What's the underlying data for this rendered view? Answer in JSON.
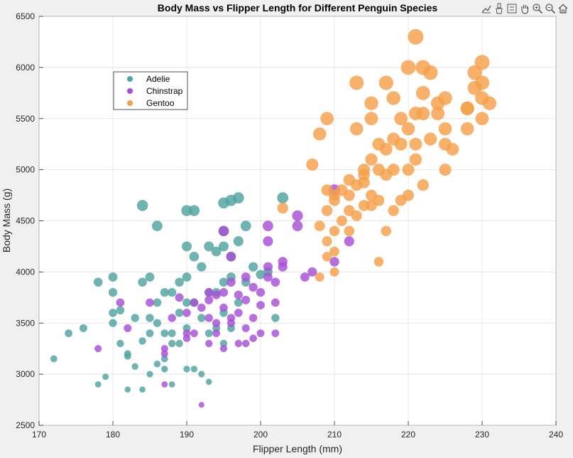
{
  "toolbar": {
    "icons": [
      "data-tips-icon",
      "brush-icon",
      "restore-view-icon",
      "pan-icon",
      "zoom-in-icon",
      "zoom-out-icon",
      "home-icon"
    ]
  },
  "chart_data": {
    "type": "scatter",
    "title": "Body Mass vs Flipper Length for Different Penguin Species",
    "xlabel": "Flipper Length (mm)",
    "ylabel": "Body Mass (g)",
    "xlim": [
      170,
      240
    ],
    "ylim": [
      2500,
      6500
    ],
    "xticks": [
      "170",
      "180",
      "190",
      "200",
      "210",
      "220",
      "230",
      "240"
    ],
    "yticks": [
      "2500",
      "3000",
      "3500",
      "4000",
      "4500",
      "5000",
      "5500",
      "6000",
      "6500"
    ],
    "grid": true,
    "legend_position": "top-left",
    "marker_size_varies": true,
    "series": [
      {
        "name": "Adelie",
        "color": "#4fa3a0",
        "points": [
          [
            172,
            3150
          ],
          [
            174,
            3400
          ],
          [
            176,
            3450
          ],
          [
            178,
            2900
          ],
          [
            178,
            3900
          ],
          [
            179,
            2975
          ],
          [
            180,
            3950
          ],
          [
            180,
            3800
          ],
          [
            180,
            3600
          ],
          [
            180,
            3500
          ],
          [
            181,
            3625
          ],
          [
            181,
            3300
          ],
          [
            182,
            2850
          ],
          [
            182,
            3175
          ],
          [
            182,
            3200
          ],
          [
            183,
            3075
          ],
          [
            183,
            3550
          ],
          [
            184,
            4650
          ],
          [
            184,
            3900
          ],
          [
            184,
            3325
          ],
          [
            184,
            2850
          ],
          [
            185,
            3950
          ],
          [
            185,
            3550
          ],
          [
            185,
            3400
          ],
          [
            185,
            3000
          ],
          [
            186,
            4450
          ],
          [
            186,
            3700
          ],
          [
            186,
            3500
          ],
          [
            186,
            3100
          ],
          [
            187,
            3800
          ],
          [
            187,
            3400
          ],
          [
            187,
            3150
          ],
          [
            187,
            3050
          ],
          [
            188,
            3800
          ],
          [
            188,
            3400
          ],
          [
            188,
            3300
          ],
          [
            188,
            2900
          ],
          [
            189,
            3900
          ],
          [
            189,
            3600
          ],
          [
            189,
            3300
          ],
          [
            190,
            4600
          ],
          [
            190,
            4250
          ],
          [
            190,
            3950
          ],
          [
            190,
            3700
          ],
          [
            190,
            3450
          ],
          [
            190,
            3050
          ],
          [
            191,
            4600
          ],
          [
            191,
            4150
          ],
          [
            191,
            3700
          ],
          [
            191,
            3050
          ],
          [
            192,
            4050
          ],
          [
            192,
            3550
          ],
          [
            192,
            3000
          ],
          [
            193,
            4250
          ],
          [
            193,
            3800
          ],
          [
            193,
            3400
          ],
          [
            193,
            2925
          ],
          [
            194,
            4200
          ],
          [
            194,
            3800
          ],
          [
            194,
            3450
          ],
          [
            195,
            4675
          ],
          [
            195,
            4400
          ],
          [
            195,
            4250
          ],
          [
            195,
            3900
          ],
          [
            195,
            3600
          ],
          [
            195,
            3300
          ],
          [
            196,
            4700
          ],
          [
            196,
            4150
          ],
          [
            196,
            3950
          ],
          [
            196,
            3450
          ],
          [
            197,
            4725
          ],
          [
            197,
            4300
          ],
          [
            197,
            3700
          ],
          [
            198,
            4450
          ],
          [
            198,
            3900
          ],
          [
            199,
            4050
          ],
          [
            200,
            3975
          ],
          [
            201,
            4000
          ],
          [
            202,
            3550
          ],
          [
            203,
            4725
          ]
        ]
      },
      {
        "name": "Chinstrap",
        "color": "#a64fd4",
        "points": [
          [
            178,
            3250
          ],
          [
            181,
            3700
          ],
          [
            182,
            3450
          ],
          [
            185,
            3700
          ],
          [
            187,
            3250
          ],
          [
            187,
            3200
          ],
          [
            187,
            2900
          ],
          [
            188,
            3550
          ],
          [
            189,
            3750
          ],
          [
            190,
            3600
          ],
          [
            190,
            3400
          ],
          [
            190,
            3350
          ],
          [
            191,
            3700
          ],
          [
            191,
            3400
          ],
          [
            192,
            2700
          ],
          [
            193,
            3800
          ],
          [
            193,
            3725
          ],
          [
            193,
            3550
          ],
          [
            194,
            3775
          ],
          [
            194,
            3500
          ],
          [
            195,
            4400
          ],
          [
            195,
            3650
          ],
          [
            195,
            3250
          ],
          [
            196,
            4150
          ],
          [
            196,
            3550
          ],
          [
            196,
            3900
          ],
          [
            197,
            3775
          ],
          [
            197,
            3600
          ],
          [
            197,
            3300
          ],
          [
            198,
            3950
          ],
          [
            198,
            3725
          ],
          [
            198,
            3450
          ],
          [
            199,
            3850
          ],
          [
            199,
            3350
          ],
          [
            200,
            3800
          ],
          [
            200,
            3675
          ],
          [
            200,
            3400
          ],
          [
            201,
            4300
          ],
          [
            201,
            4050
          ],
          [
            201,
            3950
          ],
          [
            202,
            3700
          ],
          [
            202,
            3400
          ],
          [
            203,
            4100
          ],
          [
            203,
            4050
          ],
          [
            206,
            3950
          ],
          [
            207,
            4000
          ],
          [
            210,
            4100
          ],
          [
            210,
            4800
          ],
          [
            212,
            4300
          ],
          [
            202,
            3900
          ],
          [
            194,
            3400
          ],
          [
            192,
            3650
          ],
          [
            198,
            3300
          ],
          [
            196,
            3500
          ],
          [
            199,
            3550
          ],
          [
            195,
            3800
          ],
          [
            201,
            4450
          ],
          [
            205,
            4550
          ],
          [
            205,
            4450
          ],
          [
            193,
            3300
          ]
        ]
      },
      {
        "name": "Gentoo",
        "color": "#f5a04a",
        "points": [
          [
            203,
            4625
          ],
          [
            207,
            5050
          ],
          [
            208,
            4450
          ],
          [
            208,
            5350
          ],
          [
            208,
            3950
          ],
          [
            209,
            4300
          ],
          [
            209,
            4150
          ],
          [
            209,
            4600
          ],
          [
            209,
            5500
          ],
          [
            209,
            4800
          ],
          [
            210,
            4700
          ],
          [
            210,
            4400
          ],
          [
            210,
            4200
          ],
          [
            210,
            4000
          ],
          [
            210,
            4750
          ],
          [
            211,
            4800
          ],
          [
            211,
            4500
          ],
          [
            212,
            4750
          ],
          [
            212,
            4400
          ],
          [
            212,
            4600
          ],
          [
            212,
            4900
          ],
          [
            213,
            4850
          ],
          [
            213,
            4550
          ],
          [
            213,
            5400
          ],
          [
            213,
            5850
          ],
          [
            214,
            4650
          ],
          [
            214,
            4875
          ],
          [
            214,
            5000
          ],
          [
            215,
            4650
          ],
          [
            215,
            5100
          ],
          [
            215,
            4750
          ],
          [
            215,
            5500
          ],
          [
            215,
            5650
          ],
          [
            216,
            5000
          ],
          [
            216,
            4700
          ],
          [
            216,
            5250
          ],
          [
            216,
            4100
          ],
          [
            217,
            4950
          ],
          [
            217,
            5850
          ],
          [
            217,
            5200
          ],
          [
            217,
            4400
          ],
          [
            218,
            5300
          ],
          [
            218,
            4600
          ],
          [
            218,
            5700
          ],
          [
            218,
            5000
          ],
          [
            219,
            5500
          ],
          [
            219,
            5250
          ],
          [
            220,
            5400
          ],
          [
            220,
            5000
          ],
          [
            220,
            6000
          ],
          [
            220,
            4750
          ],
          [
            221,
            5250
          ],
          [
            221,
            5550
          ],
          [
            221,
            6300
          ],
          [
            221,
            5100
          ],
          [
            222,
            5750
          ],
          [
            222,
            5550
          ],
          [
            222,
            6000
          ],
          [
            222,
            4850
          ],
          [
            223,
            5300
          ],
          [
            223,
            5950
          ],
          [
            224,
            5650
          ],
          [
            224,
            5550
          ],
          [
            225,
            5700
          ],
          [
            225,
            5400
          ],
          [
            225,
            5250
          ],
          [
            225,
            5000
          ],
          [
            226,
            5200
          ],
          [
            228,
            5600
          ],
          [
            228,
            5400
          ],
          [
            229,
            5800
          ],
          [
            229,
            5950
          ],
          [
            230,
            6050
          ],
          [
            230,
            5500
          ],
          [
            230,
            5700
          ],
          [
            230,
            5850
          ],
          [
            231,
            5650
          ],
          [
            228,
            5600
          ],
          [
            219,
            4700
          ],
          [
            214,
            4950
          ]
        ]
      }
    ]
  }
}
